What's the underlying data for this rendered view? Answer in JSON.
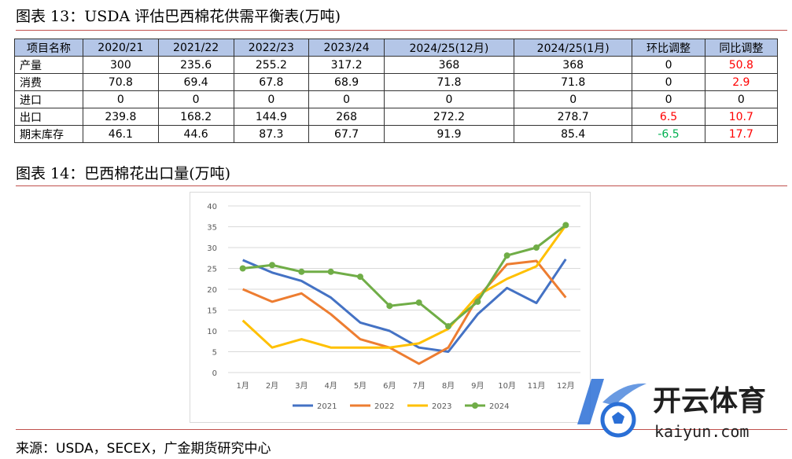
{
  "figure13": {
    "title": "图表 13：USDA 评估巴西棉花供需平衡表(万吨)",
    "headers": [
      "项目名称",
      "2020/21",
      "2021/22",
      "2022/23",
      "2023/24",
      "2024/25(12月)",
      "2024/25(1月)",
      "环比调整",
      "同比调整"
    ],
    "rows": [
      {
        "label": "产量",
        "cells": [
          "300",
          "235.6",
          "255.2",
          "317.2",
          "368",
          "368",
          "0",
          "50.8"
        ],
        "cell_colors": [
          "",
          "",
          "",
          "",
          "",
          "",
          "",
          "red"
        ]
      },
      {
        "label": "消费",
        "cells": [
          "70.8",
          "69.4",
          "67.8",
          "68.9",
          "71.8",
          "71.8",
          "0",
          "2.9"
        ],
        "cell_colors": [
          "",
          "",
          "",
          "",
          "",
          "",
          "",
          "red"
        ]
      },
      {
        "label": "进口",
        "cells": [
          "0",
          "0",
          "0",
          "0",
          "0",
          "0",
          "0",
          "0"
        ],
        "cell_colors": [
          "",
          "",
          "",
          "",
          "",
          "",
          "",
          ""
        ]
      },
      {
        "label": "出口",
        "cells": [
          "239.8",
          "168.2",
          "144.9",
          "268",
          "272.2",
          "278.7",
          "6.5",
          "10.7"
        ],
        "cell_colors": [
          "",
          "",
          "",
          "",
          "",
          "",
          "red",
          "red"
        ]
      },
      {
        "label": "期末库存",
        "cells": [
          "46.1",
          "44.6",
          "87.3",
          "67.7",
          "91.9",
          "85.4",
          "-6.5",
          "17.7"
        ],
        "cell_colors": [
          "",
          "",
          "",
          "",
          "",
          "",
          "green",
          "red"
        ]
      }
    ],
    "colors": {
      "header_bg": "#b4c6e7",
      "red": "#ff0000",
      "green": "#00b050"
    }
  },
  "figure14": {
    "title": "图表 14：巴西棉花出口量(万吨)"
  },
  "chart_data": {
    "type": "line",
    "title": "",
    "xlabel": "",
    "ylabel": "",
    "categories": [
      "1月",
      "2月",
      "3月",
      "4月",
      "5月",
      "6月",
      "7月",
      "8月",
      "9月",
      "10月",
      "11月",
      "12月"
    ],
    "ylim": [
      0,
      40
    ],
    "yticks": [
      "0",
      "5",
      "10",
      "15",
      "20",
      "25",
      "30",
      "35",
      "40"
    ],
    "grid": true,
    "legend_position": "bottom",
    "series": [
      {
        "name": "2021",
        "color": "#4472c4",
        "marker": false,
        "values": [
          27,
          24,
          22,
          18,
          12,
          10,
          6,
          5,
          14,
          20.3,
          16.7,
          27.2
        ]
      },
      {
        "name": "2022",
        "color": "#ed7d31",
        "marker": false,
        "values": [
          20,
          17,
          19,
          14,
          8,
          6,
          2.1,
          6,
          18,
          26,
          26.8,
          18
        ]
      },
      {
        "name": "2023",
        "color": "#ffc000",
        "marker": false,
        "values": [
          12.5,
          6,
          8,
          6,
          6,
          6,
          7,
          10.5,
          18.5,
          22.5,
          25.5,
          35.3
        ]
      },
      {
        "name": "2024",
        "color": "#70ad47",
        "marker": true,
        "values": [
          25,
          25.8,
          24.2,
          24.2,
          23,
          16,
          16.8,
          11.1,
          17,
          28.1,
          30,
          35.4
        ]
      }
    ]
  },
  "source": "来源：USDA，SECEX，广金期货研究中心",
  "watermark": {
    "brand_cn": "开云体育",
    "brand_domain": "kaiyun.com",
    "accent": "#2a6fd6"
  }
}
